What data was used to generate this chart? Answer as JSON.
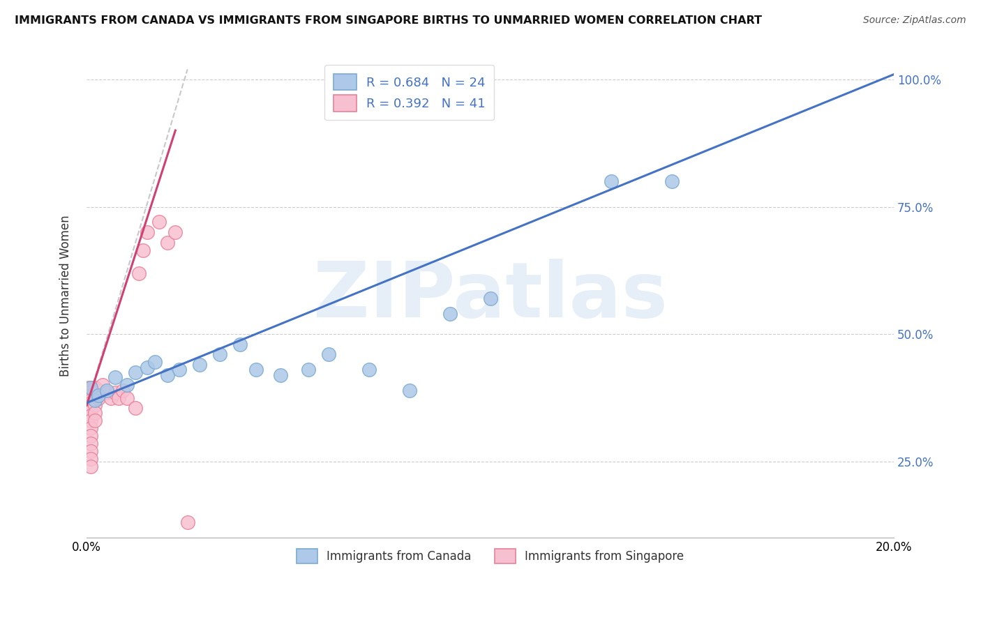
{
  "title": "IMMIGRANTS FROM CANADA VS IMMIGRANTS FROM SINGAPORE BIRTHS TO UNMARRIED WOMEN CORRELATION CHART",
  "source": "Source: ZipAtlas.com",
  "ylabel": "Births to Unmarried Women",
  "watermark": "ZIPatlas",
  "canada_R": 0.684,
  "canada_N": 24,
  "singapore_R": 0.392,
  "singapore_N": 41,
  "canada_color": "#adc8e8",
  "canada_edge": "#7aaad0",
  "singapore_color": "#f7c0d0",
  "singapore_edge": "#e8809a",
  "canada_line_color": "#4472c4",
  "singapore_line_color": "#d04070",
  "dashed_color": "#c8c8c8",
  "background_color": "#ffffff",
  "grid_color": "#cccccc",
  "canada_scatter": [
    [
      0.001,
      0.395
    ],
    [
      0.002,
      0.37
    ],
    [
      0.003,
      0.38
    ],
    [
      0.005,
      0.39
    ],
    [
      0.007,
      0.415
    ],
    [
      0.01,
      0.4
    ],
    [
      0.012,
      0.425
    ],
    [
      0.015,
      0.435
    ],
    [
      0.017,
      0.445
    ],
    [
      0.02,
      0.42
    ],
    [
      0.023,
      0.43
    ],
    [
      0.028,
      0.44
    ],
    [
      0.033,
      0.46
    ],
    [
      0.038,
      0.48
    ],
    [
      0.042,
      0.43
    ],
    [
      0.048,
      0.42
    ],
    [
      0.055,
      0.43
    ],
    [
      0.06,
      0.46
    ],
    [
      0.07,
      0.43
    ],
    [
      0.08,
      0.39
    ],
    [
      0.09,
      0.54
    ],
    [
      0.1,
      0.57
    ],
    [
      0.13,
      0.8
    ],
    [
      0.145,
      0.8
    ]
  ],
  "singapore_scatter": [
    [
      0.0005,
      0.395
    ],
    [
      0.0005,
      0.39
    ],
    [
      0.0005,
      0.385
    ],
    [
      0.001,
      0.38
    ],
    [
      0.001,
      0.375
    ],
    [
      0.001,
      0.37
    ],
    [
      0.001,
      0.365
    ],
    [
      0.001,
      0.36
    ],
    [
      0.001,
      0.355
    ],
    [
      0.001,
      0.35
    ],
    [
      0.001,
      0.34
    ],
    [
      0.001,
      0.33
    ],
    [
      0.001,
      0.315
    ],
    [
      0.001,
      0.3
    ],
    [
      0.001,
      0.285
    ],
    [
      0.001,
      0.27
    ],
    [
      0.001,
      0.255
    ],
    [
      0.001,
      0.24
    ],
    [
      0.002,
      0.395
    ],
    [
      0.002,
      0.385
    ],
    [
      0.002,
      0.375
    ],
    [
      0.002,
      0.36
    ],
    [
      0.002,
      0.345
    ],
    [
      0.002,
      0.33
    ],
    [
      0.003,
      0.39
    ],
    [
      0.003,
      0.375
    ],
    [
      0.004,
      0.4
    ],
    [
      0.005,
      0.385
    ],
    [
      0.006,
      0.375
    ],
    [
      0.007,
      0.385
    ],
    [
      0.008,
      0.375
    ],
    [
      0.009,
      0.39
    ],
    [
      0.01,
      0.375
    ],
    [
      0.012,
      0.355
    ],
    [
      0.013,
      0.62
    ],
    [
      0.014,
      0.665
    ],
    [
      0.015,
      0.7
    ],
    [
      0.018,
      0.72
    ],
    [
      0.02,
      0.68
    ],
    [
      0.022,
      0.7
    ],
    [
      0.025,
      0.13
    ]
  ],
  "xlim": [
    0.0,
    0.2
  ],
  "ylim": [
    0.1,
    1.05
  ],
  "ytick_vals": [
    0.25,
    0.5,
    0.75,
    1.0
  ],
  "ytick_labels": [
    "25.0%",
    "50.0%",
    "75.0%",
    "100.0%"
  ],
  "xtick_vals": [
    0.0,
    0.05,
    0.1,
    0.15,
    0.2
  ],
  "xtick_labels": [
    "0.0%",
    "",
    "",
    "",
    "20.0%"
  ],
  "canada_line": [
    [
      0.0,
      0.365
    ],
    [
      0.2,
      1.01
    ]
  ],
  "singapore_line": [
    [
      0.0,
      0.36
    ],
    [
      0.022,
      0.9
    ]
  ],
  "dashed_line": [
    [
      0.0,
      0.36
    ],
    [
      0.025,
      1.02
    ]
  ]
}
